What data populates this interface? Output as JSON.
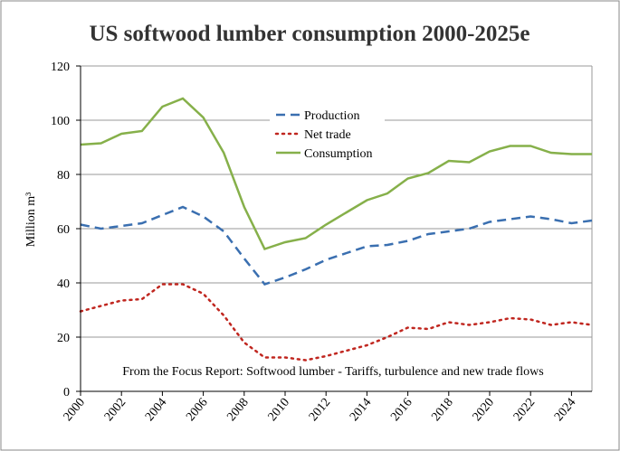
{
  "chart_data": {
    "type": "line",
    "title": "US softwood lumber consumption 2000-2025e",
    "y_label": "Million m³",
    "annotation": "From the Focus Report: Softwood lumber - Tariffs, turbulence and new trade flows",
    "x": [
      2000,
      2001,
      2002,
      2003,
      2004,
      2005,
      2006,
      2007,
      2008,
      2009,
      2010,
      2011,
      2012,
      2013,
      2014,
      2015,
      2016,
      2017,
      2018,
      2019,
      2020,
      2021,
      2022,
      2023,
      2024,
      2025
    ],
    "series": [
      {
        "name": "Production",
        "color": "#3a6fb0",
        "dash": "10,6",
        "values": [
          61.5,
          60,
          61,
          62,
          65,
          68,
          64.5,
          59,
          49,
          39.5,
          42,
          45,
          48.5,
          51,
          53.5,
          54,
          55.5,
          58,
          59,
          60,
          62.5,
          63.5,
          64.5,
          63.5,
          62,
          63
        ]
      },
      {
        "name": "Net trade",
        "color": "#c0261f",
        "dash": "2,5",
        "values": [
          29.5,
          31.5,
          33.5,
          34,
          39.5,
          39.5,
          36,
          28,
          18,
          12.5,
          12.5,
          11.5,
          13,
          15,
          17,
          20,
          23.5,
          23,
          25.5,
          24.5,
          25.5,
          27,
          26.5,
          24.5,
          25.5,
          24.5
        ]
      },
      {
        "name": "Consumption",
        "color": "#86b04a",
        "dash": "none",
        "values": [
          91,
          91.5,
          95,
          96,
          105,
          108,
          101,
          88,
          68,
          52.5,
          55,
          56.5,
          61.5,
          66,
          70.5,
          73,
          78.5,
          80.5,
          85,
          84.5,
          88.5,
          90.5,
          90.5,
          88,
          87.5,
          87.5
        ]
      }
    ],
    "xlim": [
      2000,
      2025
    ],
    "xticks": [
      2000,
      2002,
      2004,
      2006,
      2008,
      2010,
      2012,
      2014,
      2016,
      2018,
      2020,
      2022,
      2024
    ],
    "ylim": [
      0,
      120
    ],
    "yticks": [
      0,
      20,
      40,
      60,
      80,
      100,
      120
    ],
    "grid": true
  }
}
